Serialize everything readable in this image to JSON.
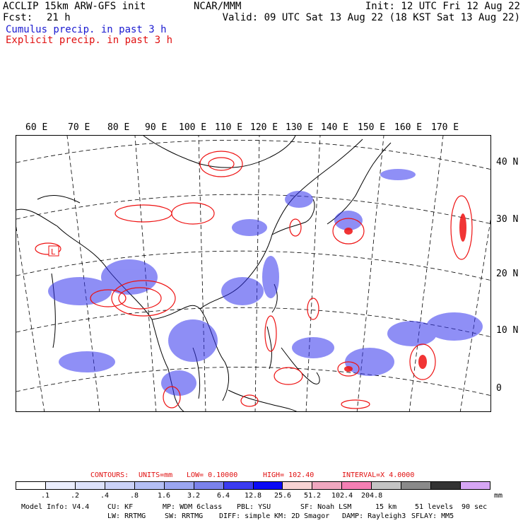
{
  "header": {
    "model": "ACCLIP 15km ARW-GFS init",
    "fcst_label": "Fcst:",
    "fcst_value": "21 h",
    "org": "NCAR/MMM",
    "init": "Init: 12 UTC Fri 12 Aug 22",
    "valid": "Valid: 09 UTC Sat 13 Aug 22 (18 KST Sat 13 Aug 22)",
    "cumulus": "Cumulus precip. in past 3 h",
    "explicit": "Explicit precip. in past 3 h"
  },
  "map": {
    "lon_labels": [
      "60 E",
      "70 E",
      "80 E",
      "90 E",
      "100 E",
      "110 E",
      "120 E",
      "130 E",
      "140 E",
      "150 E",
      "160 E",
      "170 E"
    ],
    "lat_labels": [
      "40 N",
      "30 N",
      "20 N",
      "10 N",
      "0"
    ],
    "low_marker": "L",
    "cumulus_color": "#3333ee",
    "explicit_color": "#ee1111",
    "coast_color": "#000000"
  },
  "contours": {
    "label": "CONTOURS:",
    "units": "UNITS=mm",
    "low": "LOW= 0.10000",
    "high": "HIGH= 102.40",
    "interval": "INTERVAL=X 4.0000"
  },
  "colorbar": {
    "colors": [
      "#ffffff",
      "#ebeefd",
      "#dde2fb",
      "#cbd2f8",
      "#b4bff5",
      "#9ba6f1",
      "#7b82ec",
      "#3b3bf0",
      "#0a0af5",
      "#f7d3d3",
      "#f0a8c0",
      "#f57fb4",
      "#c4c4c4",
      "#8a8a8a",
      "#333333",
      "#d7a6f5"
    ],
    "ticks": [
      ".1",
      ".2",
      ".4",
      ".8",
      "1.6",
      "3.2",
      "6.4",
      "12.8",
      "25.6",
      "51.2",
      "102.4",
      "204.8"
    ],
    "unit": "mm"
  },
  "model_info": {
    "line1": [
      "Model Info: V4.4",
      "CU: KF",
      "MP: WDM 6class",
      "PBL: YSU",
      "SF: Noah LSM",
      "15 km",
      "51 levels",
      "90 sec"
    ],
    "line2": [
      "LW: RRTMG",
      "SW: RRTMG",
      "DIFF: simple",
      "KM: 2D Smagor",
      "DAMP: Rayleigh3",
      "SFLAY: MM5"
    ]
  }
}
